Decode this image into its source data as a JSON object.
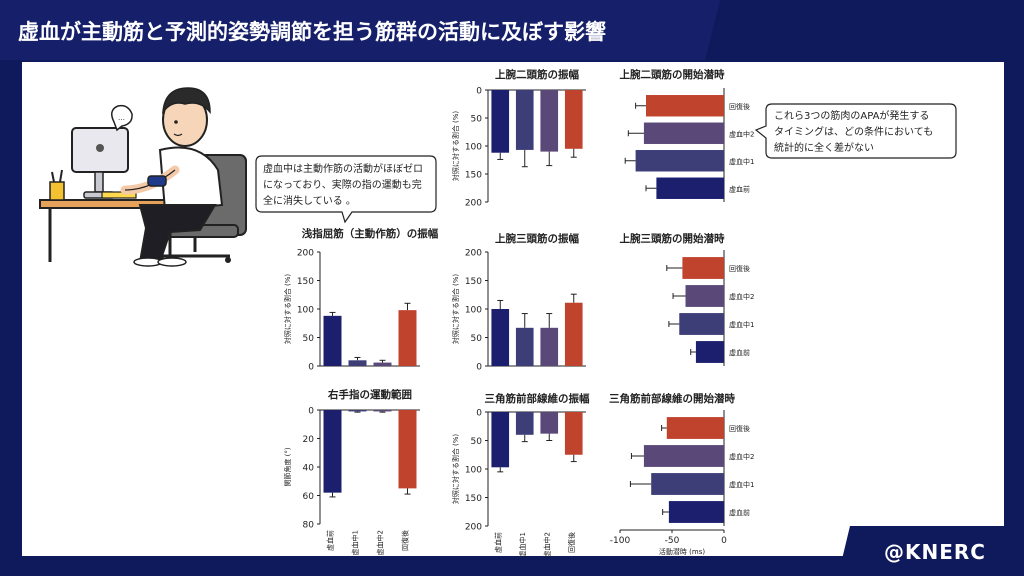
{
  "slide": {
    "title": "虚血が主動筋と予測的姿勢調節を担う筋群の活動に及ぼす影響",
    "brand": "@KNERC"
  },
  "colors": {
    "navy": "#1b1f6e",
    "purple1": "#3d3d78",
    "purple2": "#5a4878",
    "red": "#c0432d",
    "background": "#0f1a5c",
    "white": "#ffffff"
  },
  "bubble_left": {
    "lines": [
      "虚血中は主動作筋の活動がほぼゼロ",
      "になっており、実際の指の運動も完",
      "全に消失している 。"
    ]
  },
  "bubble_right": {
    "lines": [
      "これら3つの筋肉のAPAが発生する",
      "タイミングは、どの条件においても",
      "統計的に全く差がない"
    ]
  },
  "chart_data": [
    {
      "id": "fds",
      "type": "bar",
      "title": "浅指屈筋（主動作筋）の振幅",
      "ylabel": "対照に対する割合 (%)",
      "ylim": [
        0,
        200
      ],
      "yticks": [
        0,
        50,
        100,
        150,
        200
      ],
      "categories": [
        "虚血前",
        "虚血中1",
        "虚血中2",
        "回復後"
      ],
      "values": [
        88,
        10,
        6,
        98
      ],
      "errors": [
        6,
        5,
        4,
        12
      ],
      "colors": [
        "#1b1f6e",
        "#3d3d78",
        "#5a4878",
        "#c0432d"
      ],
      "show_xticks": false
    },
    {
      "id": "rom",
      "type": "bar",
      "title": "右手指の運動範囲",
      "ylabel": "関節角度 (°)",
      "ylim": [
        0,
        80
      ],
      "inverted": true,
      "yticks": [
        0,
        20,
        40,
        60,
        80
      ],
      "categories": [
        "虚血前",
        "虚血中1",
        "虚血中2",
        "回復後"
      ],
      "values": [
        58,
        1,
        1,
        55
      ],
      "errors": [
        3,
        0.5,
        0.5,
        4
      ],
      "colors": [
        "#1b1f6e",
        "#3d3d78",
        "#5a4878",
        "#c0432d"
      ],
      "show_xticks": true
    },
    {
      "id": "biceps_amp",
      "type": "bar",
      "title": "上腕二頭筋の振幅",
      "ylabel": "対照に対する割合 (%)",
      "ylim": [
        0,
        200
      ],
      "inverted": true,
      "yticks": [
        0,
        50,
        100,
        150,
        200
      ],
      "categories": [
        "虚血前",
        "虚血中1",
        "虚血中2",
        "回復後"
      ],
      "values": [
        112,
        107,
        110,
        105
      ],
      "errors": [
        12,
        30,
        25,
        15
      ],
      "colors": [
        "#1b1f6e",
        "#3d3d78",
        "#5a4878",
        "#c0432d"
      ],
      "show_xticks": false
    },
    {
      "id": "triceps_amp",
      "type": "bar",
      "title": "上腕三頭筋の振幅",
      "ylabel": "対照に対する割合 (%)",
      "ylim": [
        0,
        200
      ],
      "yticks": [
        0,
        50,
        100,
        150,
        200
      ],
      "categories": [
        "虚血前",
        "虚血中1",
        "虚血中2",
        "回復後"
      ],
      "values": [
        100,
        67,
        67,
        111
      ],
      "errors": [
        15,
        25,
        25,
        15
      ],
      "colors": [
        "#1b1f6e",
        "#3d3d78",
        "#5a4878",
        "#c0432d"
      ],
      "show_xticks": false
    },
    {
      "id": "deltoid_amp",
      "type": "bar",
      "title": "三角筋前部線維の振幅",
      "ylabel": "対照に対する割合 (%)",
      "ylim": [
        0,
        200
      ],
      "inverted": true,
      "yticks": [
        0,
        50,
        100,
        150,
        200
      ],
      "categories": [
        "虚血前",
        "虚血中1",
        "虚血中2",
        "回復後"
      ],
      "values": [
        97,
        40,
        38,
        75
      ],
      "errors": [
        8,
        12,
        12,
        12
      ],
      "colors": [
        "#1b1f6e",
        "#3d3d78",
        "#5a4878",
        "#c0432d"
      ],
      "show_xticks": true
    },
    {
      "id": "biceps_lat",
      "type": "hbar",
      "title": "上腕二頭筋の開始潜時",
      "xlim": [
        -100,
        0
      ],
      "categories": [
        "回復後",
        "虚血中2",
        "虚血中1",
        "虚血前"
      ],
      "values": [
        -75,
        -77,
        -85,
        -65
      ],
      "errors": [
        10,
        15,
        10,
        10
      ],
      "colors": [
        "#c0432d",
        "#5a4878",
        "#3d3d78",
        "#1b1f6e"
      ],
      "show_xaxis": false
    },
    {
      "id": "triceps_lat",
      "type": "hbar",
      "title": "上腕三頭筋の開始潜時",
      "xlim": [
        -100,
        0
      ],
      "categories": [
        "回復後",
        "虚血中2",
        "虚血中1",
        "虚血前"
      ],
      "values": [
        -40,
        -37,
        -43,
        -27
      ],
      "errors": [
        15,
        12,
        10,
        5
      ],
      "colors": [
        "#c0432d",
        "#5a4878",
        "#3d3d78",
        "#1b1f6e"
      ],
      "show_xaxis": false
    },
    {
      "id": "deltoid_lat",
      "type": "hbar",
      "title": "三角筋前部線維の開始潜時",
      "xlabel": "活動潜時 (ms)",
      "xlim": [
        -100,
        0
      ],
      "xticks": [
        -100,
        -50,
        0
      ],
      "categories": [
        "回復後",
        "虚血中2",
        "虚血中1",
        "虚血前"
      ],
      "values": [
        -55,
        -77,
        -70,
        -53
      ],
      "errors": [
        5,
        12,
        20,
        6
      ],
      "colors": [
        "#c0432d",
        "#5a4878",
        "#3d3d78",
        "#1b1f6e"
      ],
      "show_xaxis": true
    }
  ]
}
